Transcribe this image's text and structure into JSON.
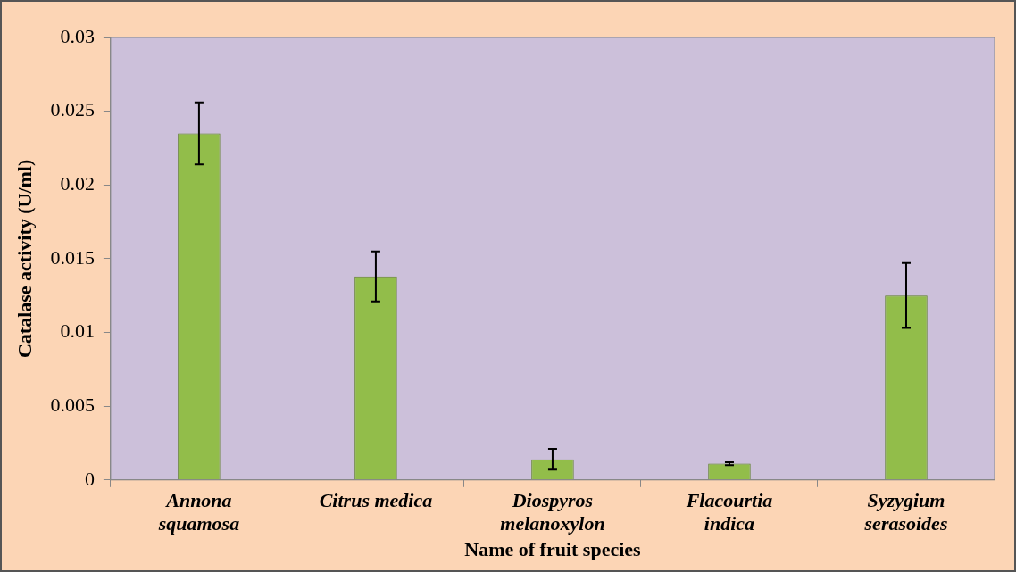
{
  "chart_data": {
    "type": "bar",
    "xlabel": "Name of fruit species",
    "ylabel": "Catalase activity (U/ml)",
    "categories": [
      "Annona\nsquamosa",
      "Citrus medica",
      "Diospyros\nmelanoxylon",
      "Flacourtia\nindica",
      "Syzygium\nserasoides"
    ],
    "values": [
      0.0235,
      0.0138,
      0.0014,
      0.0011,
      0.0125
    ],
    "errors": [
      0.0021,
      0.0017,
      0.0007,
      0.0001,
      0.0022
    ],
    "color": "#92bd4a",
    "ylim": [
      0,
      0.03
    ],
    "yticks": [
      0,
      0.005,
      0.01,
      0.015,
      0.02,
      0.025,
      0.03
    ],
    "grid": false
  }
}
